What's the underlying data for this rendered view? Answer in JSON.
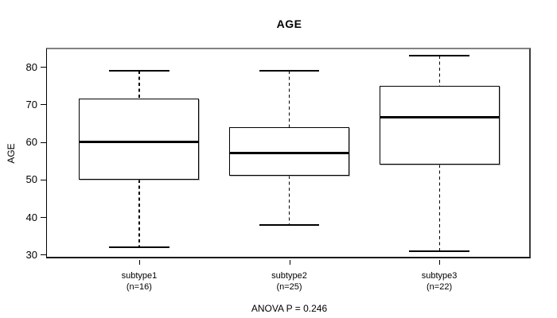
{
  "chart_data": {
    "type": "boxplot",
    "title": "AGE",
    "ylabel": "AGE",
    "ylim": [
      28.6,
      85.1
    ],
    "yticks": [
      30,
      40,
      50,
      60,
      70,
      80
    ],
    "grid": false,
    "categories": [
      "subtype1",
      "subtype2",
      "subtype3"
    ],
    "category_sublabels": [
      "(n=16)",
      "(n=25)",
      "(n=22)"
    ],
    "annotation": "ANOVA P = 0.246",
    "series": [
      {
        "name": "subtype1",
        "n": 16,
        "whisker_low": 32,
        "q1": 50,
        "median": 60,
        "q3": 71.5,
        "whisker_high": 79
      },
      {
        "name": "subtype2",
        "n": 25,
        "whisker_low": 38,
        "q1": 51,
        "median": 57,
        "q3": 64,
        "whisker_high": 79
      },
      {
        "name": "subtype3",
        "n": 22,
        "whisker_low": 31,
        "q1": 54,
        "median": 66.5,
        "q3": 75,
        "whisker_high": 83
      }
    ]
  }
}
